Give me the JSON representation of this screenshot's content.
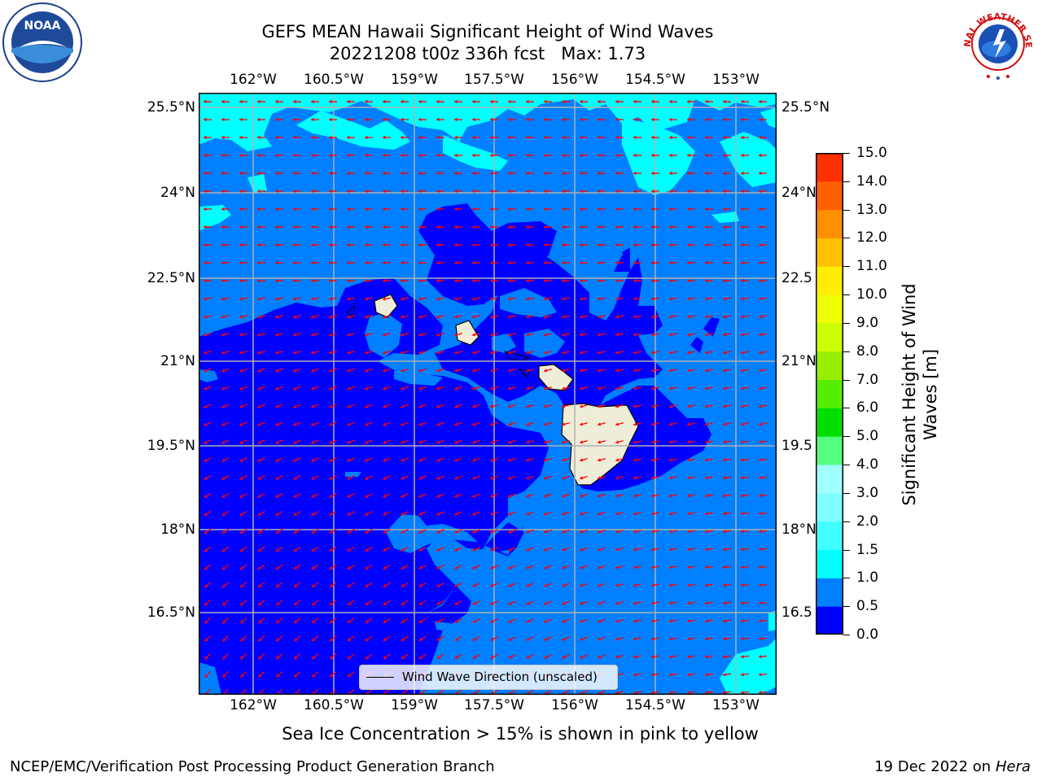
{
  "title": {
    "line1": "GEFS MEAN Hawaii Significant Height of Wind Waves",
    "line2": "20221208 t00z 336h fcst   Max: 1.73"
  },
  "axes": {
    "lon_labels": [
      "162°W",
      "160.5°W",
      "159°W",
      "157.5°W",
      "156°W",
      "154.5°W",
      "153°W"
    ],
    "lat_labels_left": [
      "25.5°N",
      "24°N",
      "22.5°N",
      "21°N",
      "19.5°N",
      "18°N",
      "16.5°N"
    ],
    "lat_labels_right": [
      "25.5°N",
      "24°N",
      "22.5",
      "21°N",
      "19.5",
      "18°N",
      "16.5"
    ]
  },
  "colorbar": {
    "ticks": [
      "0.0",
      "0.5",
      "1.0",
      "1.5",
      "2.0",
      "3.0",
      "4.0",
      "5.0",
      "6.0",
      "7.0",
      "8.0",
      "9.0",
      "10.0",
      "11.0",
      "12.0",
      "13.0",
      "14.0",
      "15.0"
    ],
    "colors": [
      "#0000ff",
      "#0080ff",
      "#00ffff",
      "#40ffff",
      "#80ffff",
      "#a0ffff",
      "#55ff80",
      "#00e000",
      "#55ee00",
      "#99ee00",
      "#ccff00",
      "#eeff00",
      "#ffee00",
      "#ffc000",
      "#ff9000",
      "#ff6000",
      "#ff3000"
    ],
    "top_color": "#ff0000",
    "label_line1": "Significant Height of Wind",
    "label_line2": "Waves [m]"
  },
  "map": {
    "lon_range": [
      -162.5,
      -152.5
    ],
    "lat_range": [
      15.3,
      25.7
    ],
    "colors": {
      "deep": "#0000ff",
      "mid": "#0080ff",
      "cyan": "#00ffff",
      "land": "#efedd8",
      "arrow": "#ff0000",
      "grid": "#b0b0b0"
    }
  },
  "legend": {
    "label": "Wind Wave Direction (unscaled)"
  },
  "footer": {
    "note": "Sea Ice Concentration > 15% is shown in pink to yellow",
    "credit_left": "NCEP/EMC/Verification Post Processing Product Generation Branch",
    "credit_date": "19 Dec 2022 on",
    "credit_host": "Hera"
  },
  "logos": {
    "noaa_text": "NOAA",
    "nws_text": "NATIONAL WEATHER SERVICE"
  }
}
